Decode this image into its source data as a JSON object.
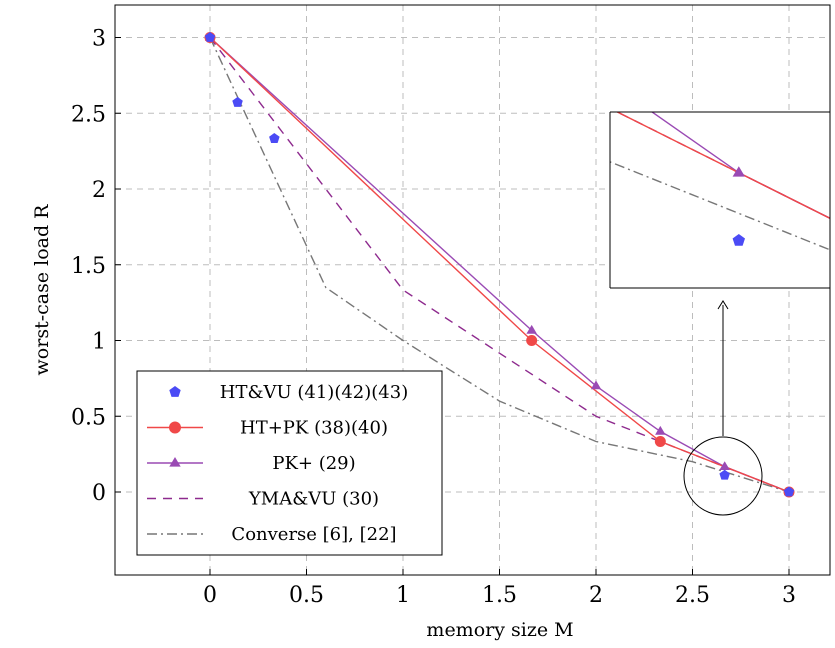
{
  "chart_data": {
    "type": "line",
    "xlabel": "memory size M",
    "ylabel": "worst-case load R",
    "xlim": [
      -0.5,
      3.2
    ],
    "ylim": [
      -0.5,
      3.2
    ],
    "xticks": [
      0,
      0.5,
      1,
      1.5,
      2,
      2.5,
      3
    ],
    "yticks": [
      0,
      0.5,
      1,
      1.5,
      2,
      2.5,
      3
    ],
    "grid": true,
    "legend_position": "bottom-left",
    "series": [
      {
        "name": "HT&VU (41)(42)(43)",
        "style": "scatter",
        "marker": "pentagon",
        "color": "#4b4bf5",
        "x": [
          0,
          0.1428,
          0.3333,
          2.6667,
          3
        ],
        "y": [
          3,
          2.5714,
          2.3333,
          0.1111,
          0
        ]
      },
      {
        "name": "HT+PK (38)(40)",
        "style": "solid",
        "marker": "circle",
        "color": "#f04848",
        "x": [
          0,
          1.6667,
          2.3333,
          3
        ],
        "y": [
          3,
          1.0,
          0.3333,
          0
        ]
      },
      {
        "name": "PK+ (29)",
        "style": "solid",
        "marker": "triangle",
        "color": "#9a4ab4",
        "x": [
          0,
          1.6667,
          2,
          2.3333,
          2.6667,
          3
        ],
        "y": [
          3,
          1.0667,
          0.7,
          0.4,
          0.1667,
          0
        ]
      },
      {
        "name": "YMA&VU (30)",
        "style": "dashed",
        "marker": "none",
        "color": "#8e2a8e",
        "x": [
          0,
          1,
          2,
          3
        ],
        "y": [
          3,
          1.3333,
          0.5,
          0
        ]
      },
      {
        "name": "Converse [6], [22]",
        "style": "dashdot",
        "marker": "none",
        "color": "#777777",
        "x": [
          0,
          0.6,
          1,
          1.5,
          2,
          2.5,
          3
        ],
        "y": [
          3,
          1.35,
          1.0,
          0.6,
          0.3333,
          0.2,
          0
        ]
      }
    ]
  }
}
